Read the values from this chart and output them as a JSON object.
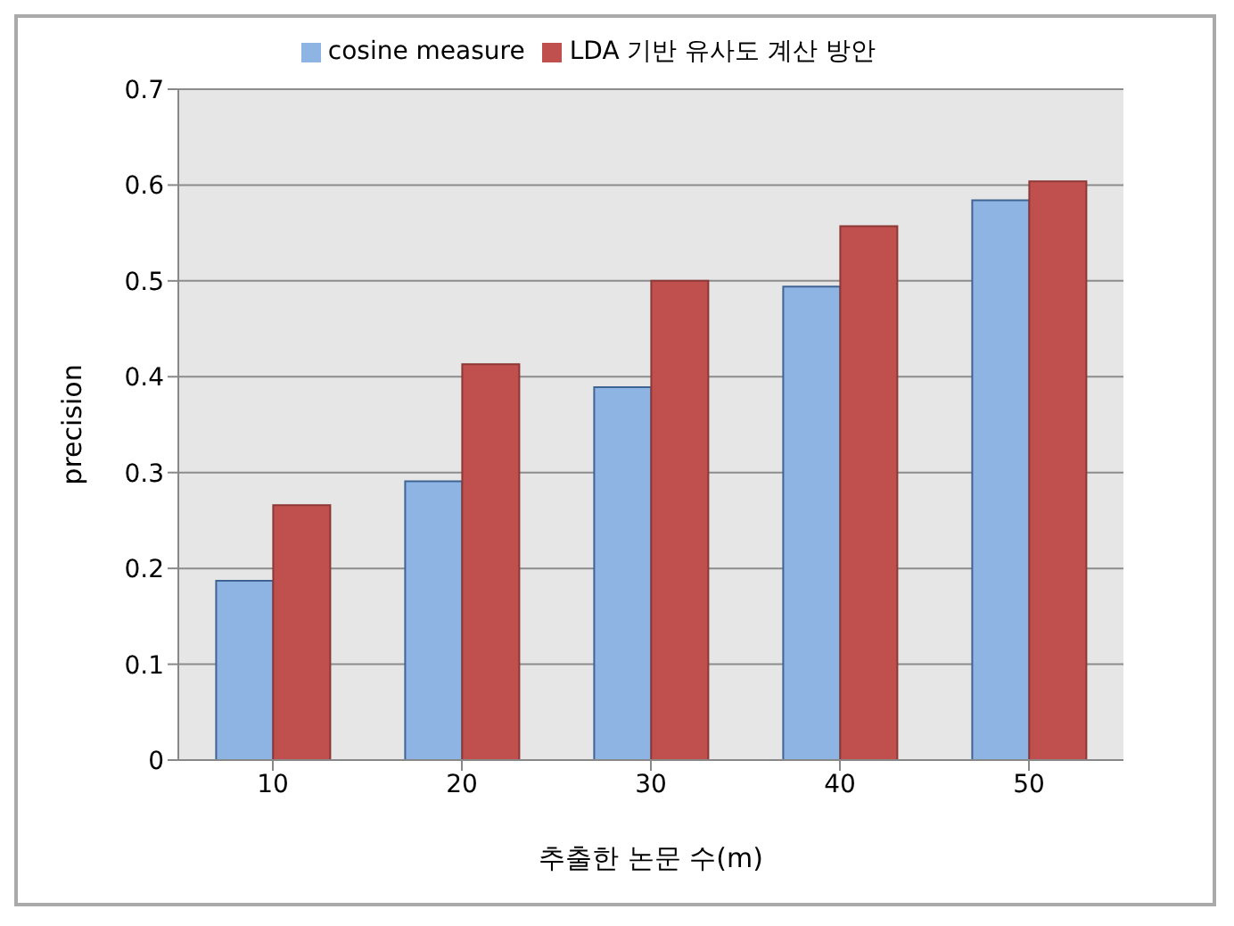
{
  "chart_data": {
    "type": "bar",
    "xlabel": "추출한 논문 수(m)",
    "ylabel": "precision",
    "categories": [
      "10",
      "20",
      "30",
      "40",
      "50"
    ],
    "series": [
      {
        "name": "cosine measure",
        "color": "#8eb4e3",
        "values": [
          0.187,
          0.291,
          0.389,
          0.494,
          0.584
        ]
      },
      {
        "name": "LDA 기반 유사도 계산 방안",
        "color": "#c0504d",
        "values": [
          0.266,
          0.413,
          0.5,
          0.557,
          0.604
        ]
      }
    ],
    "ylim": [
      0,
      0.7
    ],
    "yticks": [
      0,
      0.1,
      0.2,
      0.3,
      0.4,
      0.5,
      0.6,
      0.7
    ],
    "grid": "y",
    "legend": "top"
  }
}
